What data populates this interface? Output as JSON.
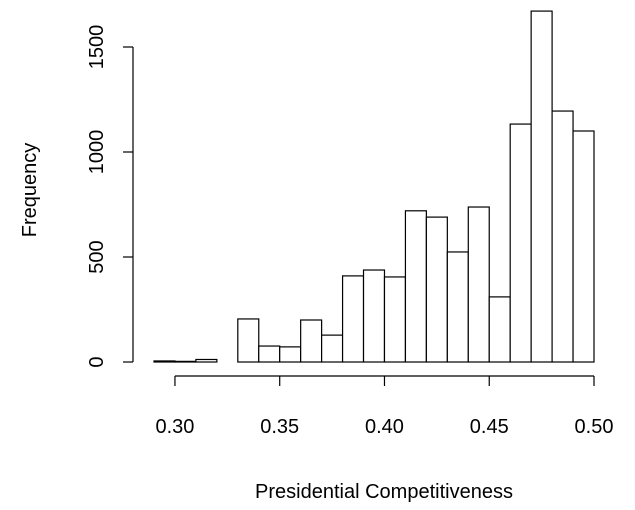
{
  "chart_data": {
    "type": "histogram",
    "xlabel": "Presidential Competitiveness",
    "ylabel": "Frequency",
    "bins": [
      0.29,
      0.3,
      0.31,
      0.32,
      0.33,
      0.34,
      0.35,
      0.36,
      0.37,
      0.38,
      0.39,
      0.4,
      0.41,
      0.42,
      0.43,
      0.44,
      0.45,
      0.46,
      0.47,
      0.48,
      0.49,
      0.5
    ],
    "values": [
      5,
      3,
      12,
      0,
      205,
      76,
      72,
      200,
      128,
      410,
      438,
      405,
      720,
      690,
      524,
      738,
      310,
      1133,
      1671,
      1195,
      1100
    ],
    "color": "#ffffff",
    "xlim": [
      0.29,
      0.5
    ],
    "xticks": [
      {
        "value": 0.3,
        "label": "0.30"
      },
      0.35,
      {
        "value": 0.4,
        "label": "0.40"
      },
      0.45,
      {
        "value": 0.5,
        "label": "0.50"
      }
    ],
    "ylim": [
      0,
      1700
    ],
    "yticks": [
      0,
      500,
      1000,
      1500
    ],
    "grid": false
  }
}
